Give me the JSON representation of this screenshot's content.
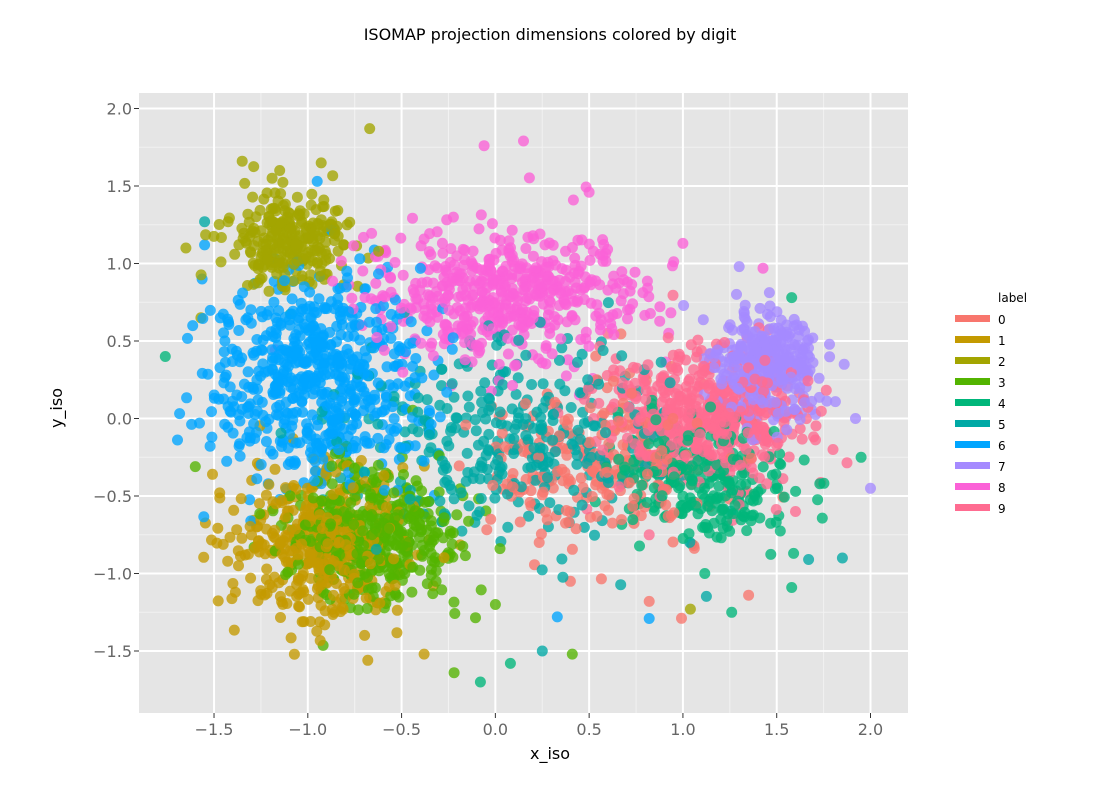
{
  "chart_data": {
    "type": "scatter",
    "title": "ISOMAP projection dimensions colored by digit",
    "xlabel": "x_iso",
    "ylabel": "y_iso",
    "xlim": [
      -1.9,
      2.2
    ],
    "ylim": [
      -1.9,
      2.1
    ],
    "x_ticks": [
      -1.5,
      -1.0,
      -0.5,
      0.0,
      0.5,
      1.0,
      1.5,
      2.0
    ],
    "x_tick_labels": [
      "−1.5",
      "−1.0",
      "−0.5",
      "0.0",
      "0.5",
      "1.0",
      "1.5",
      "2.0"
    ],
    "y_ticks": [
      -1.5,
      -1.0,
      -0.5,
      0.0,
      0.5,
      1.0,
      1.5,
      2.0
    ],
    "y_tick_labels": [
      "−1.5",
      "−1.0",
      "−0.5",
      "0.0",
      "0.5",
      "1.0",
      "1.5",
      "2.0"
    ],
    "grid": true,
    "panel_background": "#e5e5e5",
    "grid_color": "#ffffff",
    "legend": {
      "title": "label",
      "placement": "right",
      "entries": [
        "0",
        "1",
        "2",
        "3",
        "4",
        "5",
        "6",
        "7",
        "8",
        "9"
      ]
    },
    "series": [
      {
        "name": "0",
        "color": "#f8766d",
        "center": [
          0.55,
          -0.3
        ],
        "spread": [
          0.55,
          0.45
        ],
        "n": 240,
        "points": [
          [
            1.35,
            -1.14
          ],
          [
            0.82,
            -1.18
          ],
          [
            0.4,
            -1.05
          ],
          [
            0.3,
            -0.4
          ]
        ]
      },
      {
        "name": "1",
        "color": "#c49a00",
        "center": [
          -0.95,
          -0.8
        ],
        "spread": [
          0.38,
          0.4
        ],
        "n": 420,
        "points": [
          [
            -0.68,
            -1.56
          ],
          [
            -0.38,
            -1.52
          ],
          [
            -1.19,
            -1.09
          ],
          [
            -1.47,
            -0.48
          ]
        ]
      },
      {
        "name": "2",
        "color": "#a3a500",
        "center": [
          -1.1,
          1.15
        ],
        "spread": [
          0.28,
          0.28
        ],
        "n": 260,
        "points": [
          [
            -0.67,
            1.87
          ],
          [
            -1.35,
            1.66
          ],
          [
            -1.15,
            1.6
          ],
          [
            -1.65,
            1.1
          ],
          [
            1.04,
            -1.23
          ],
          [
            -1.57,
            0.65
          ]
        ]
      },
      {
        "name": "3",
        "color": "#53b400",
        "center": [
          -0.65,
          -0.75
        ],
        "spread": [
          0.4,
          0.35
        ],
        "n": 420,
        "points": [
          [
            -0.22,
            -1.64
          ],
          [
            0.41,
            -1.52
          ],
          [
            -1.6,
            -0.31
          ],
          [
            0.0,
            -1.2
          ]
        ]
      },
      {
        "name": "4",
        "color": "#00b67a",
        "center": [
          1.1,
          -0.4
        ],
        "spread": [
          0.4,
          0.35
        ],
        "n": 260,
        "points": [
          [
            -1.76,
            0.4
          ],
          [
            -0.08,
            -1.7
          ],
          [
            0.08,
            -1.58
          ],
          [
            1.58,
            0.78
          ],
          [
            1.95,
            -0.25
          ],
          [
            1.26,
            -1.25
          ],
          [
            1.58,
            -1.09
          ]
        ]
      },
      {
        "name": "5",
        "color": "#00a9a5",
        "center": [
          0.05,
          -0.15
        ],
        "spread": [
          0.7,
          0.55
        ],
        "n": 330,
        "points": [
          [
            -1.55,
            1.27
          ],
          [
            1.67,
            -0.91
          ],
          [
            0.25,
            -1.5
          ],
          [
            1.85,
            -0.9
          ]
        ]
      },
      {
        "name": "6",
        "color": "#00a5ff",
        "center": [
          -0.95,
          0.25
        ],
        "spread": [
          0.45,
          0.55
        ],
        "n": 620,
        "points": [
          [
            -1.55,
            1.12
          ],
          [
            -0.95,
            1.53
          ],
          [
            0.82,
            -1.29
          ],
          [
            0.33,
            -1.28
          ]
        ]
      },
      {
        "name": "7",
        "color": "#a58aff",
        "center": [
          1.45,
          0.35
        ],
        "spread": [
          0.22,
          0.3
        ],
        "n": 360,
        "points": [
          [
            1.86,
            0.35
          ],
          [
            1.92,
            0.0
          ],
          [
            2.0,
            -0.45
          ],
          [
            1.3,
            0.98
          ]
        ]
      },
      {
        "name": "8",
        "color": "#fb61d7",
        "center": [
          0.05,
          0.8
        ],
        "spread": [
          0.6,
          0.35
        ],
        "n": 520,
        "points": [
          [
            0.15,
            1.79
          ],
          [
            -0.06,
            1.76
          ],
          [
            0.5,
            1.46
          ],
          [
            1.0,
            1.13
          ]
        ]
      },
      {
        "name": "9",
        "color": "#ff6c91",
        "center": [
          1.1,
          0.0
        ],
        "spread": [
          0.45,
          0.35
        ],
        "n": 520,
        "points": [
          [
            0.82,
            -0.75
          ],
          [
            1.8,
            -0.2
          ],
          [
            0.6,
            0.55
          ],
          [
            1.6,
            -0.6
          ]
        ]
      }
    ]
  }
}
